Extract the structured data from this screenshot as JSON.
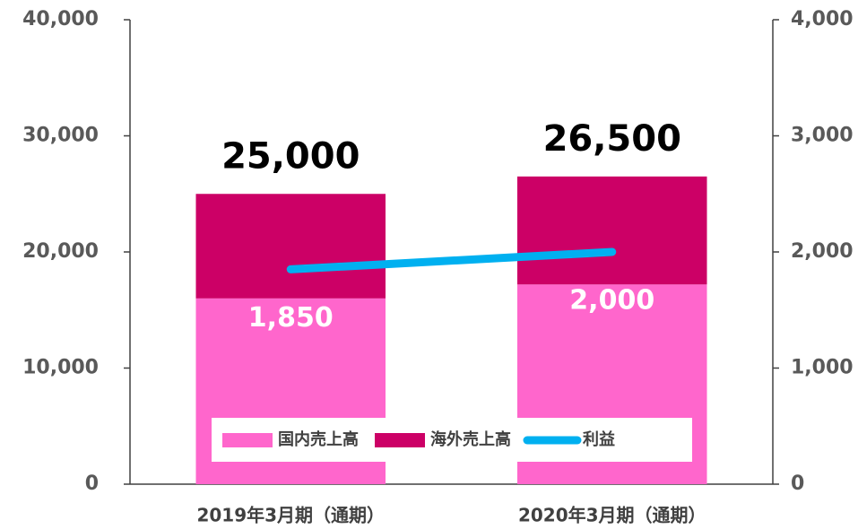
{
  "chart_data": {
    "type": "bar",
    "stacked": true,
    "categories": [
      "2019年3月期（通期）",
      "2020年3月期（通期）"
    ],
    "series": [
      {
        "name": "国内売上高",
        "color": "#ff66cc",
        "values": [
          16000,
          17200
        ]
      },
      {
        "name": "海外売上高",
        "color": "#cc0066",
        "values": [
          9000,
          9300
        ]
      },
      {
        "name": "利益",
        "type": "line",
        "axis": "y2",
        "color": "#00b0f0",
        "values": [
          1850,
          2000
        ],
        "value_labels": [
          "1,850",
          "2,000"
        ]
      }
    ],
    "totals": {
      "values": [
        25000,
        26500
      ],
      "value_labels": [
        "25,000",
        "26,500"
      ]
    },
    "ylim": [
      0,
      40000
    ],
    "yticks": [
      0,
      {
        "value": 10000,
        "label": "10,000"
      },
      {
        "value": 20000,
        "label": "20,000"
      },
      {
        "value": 30000,
        "label": "30,000"
      },
      {
        "value": 40000,
        "label": "40,000"
      }
    ],
    "y2lim": [
      0,
      4000
    ],
    "y2ticks": [
      0,
      {
        "value": 1000,
        "label": "1,000"
      },
      {
        "value": 2000,
        "label": "2,000"
      },
      {
        "value": 3000,
        "label": "3,000"
      },
      {
        "value": 4000,
        "label": "4,000"
      }
    ],
    "grid": false,
    "legend": "bottom"
  }
}
